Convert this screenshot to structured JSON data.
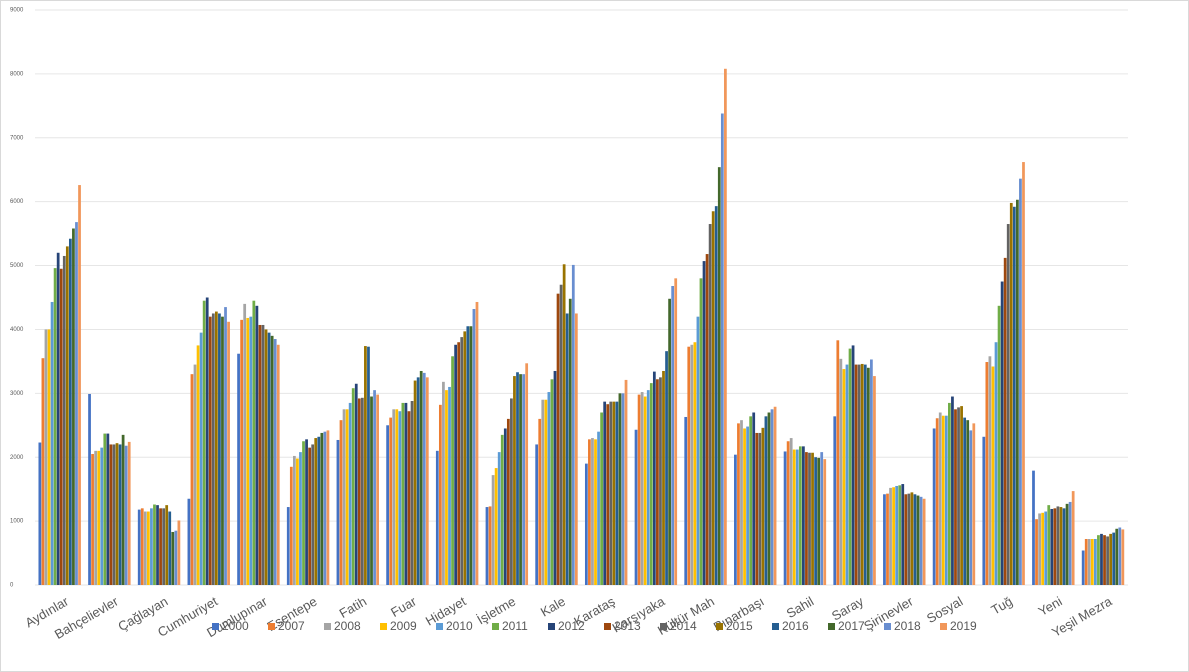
{
  "chart_data": {
    "type": "bar",
    "legend": "bottom",
    "grid": true,
    "ylim": [
      0,
      9000
    ],
    "yticks": [
      0,
      1000,
      2000,
      3000,
      4000,
      5000,
      6000,
      7000,
      8000,
      9000
    ],
    "categories": [
      "Aydınlar",
      "Bahçelievler",
      "Çağlayan",
      "Cumhuriyet",
      "Dumlupınar",
      "Esentepe",
      "Fatih",
      "Fuar",
      "Hidayet",
      "İşletme",
      "Kale",
      "Karataş",
      "Karşıyaka",
      "Kültür Mah",
      "Pınarbaşı",
      "Sahil",
      "Saray",
      "Şirinevler",
      "Sosyal",
      "Tuğ",
      "Yeni",
      "Yeşil Mezra"
    ],
    "series": [
      {
        "name": "2000",
        "color": "#4472c4",
        "values": [
          2230,
          2990,
          1180,
          1350,
          3620,
          1220,
          2270,
          2500,
          2100,
          1220,
          2200,
          1900,
          2430,
          2630,
          2040,
          2090,
          2640,
          1420,
          2450,
          2320,
          1790,
          540
        ]
      },
      {
        "name": "2007",
        "color": "#ed7d31",
        "values": [
          3550,
          2050,
          1200,
          3300,
          4150,
          1850,
          2580,
          2620,
          2820,
          1230,
          2600,
          2280,
          2980,
          3730,
          2530,
          2250,
          3830,
          1430,
          2610,
          3490,
          1030,
          720
        ]
      },
      {
        "name": "2008",
        "color": "#a5a5a5",
        "values": [
          4000,
          2100,
          1150,
          3450,
          4400,
          2020,
          2750,
          2750,
          3180,
          1720,
          2900,
          2300,
          3020,
          3760,
          2580,
          2300,
          3540,
          1520,
          2700,
          3580,
          1120,
          720
        ]
      },
      {
        "name": "2009",
        "color": "#ffc000",
        "values": [
          4000,
          2100,
          1150,
          3750,
          4180,
          1980,
          2750,
          2750,
          3050,
          1830,
          2900,
          2280,
          2950,
          3800,
          2450,
          2120,
          3380,
          1530,
          2650,
          3420,
          1130,
          720
        ]
      },
      {
        "name": "2010",
        "color": "#5b9bd5",
        "values": [
          4430,
          2150,
          1200,
          3950,
          4200,
          2080,
          2850,
          2720,
          3100,
          2080,
          3020,
          2400,
          3050,
          4200,
          2480,
          2120,
          3450,
          1550,
          2650,
          3800,
          1150,
          720
        ]
      },
      {
        "name": "2011",
        "color": "#70ad47",
        "values": [
          4960,
          2370,
          1260,
          4450,
          4450,
          2250,
          3080,
          2850,
          3580,
          2350,
          3220,
          2700,
          3160,
          4800,
          2640,
          2170,
          3700,
          1560,
          2850,
          4370,
          1250,
          780
        ]
      },
      {
        "name": "2012",
        "color": "#264478",
        "values": [
          5200,
          2370,
          1250,
          4500,
          4370,
          2280,
          3150,
          2850,
          3760,
          2450,
          3350,
          2870,
          3340,
          5070,
          2700,
          2170,
          3750,
          1580,
          2950,
          4750,
          1190,
          800
        ]
      },
      {
        "name": "2013",
        "color": "#9e480e",
        "values": [
          4950,
          2200,
          1200,
          4200,
          4070,
          2150,
          2920,
          2720,
          3800,
          2600,
          4560,
          2830,
          3220,
          5180,
          2380,
          2080,
          3450,
          1420,
          2750,
          5120,
          1200,
          780
        ]
      },
      {
        "name": "2014",
        "color": "#636363",
        "values": [
          5150,
          2200,
          1200,
          4250,
          4070,
          2200,
          2930,
          2880,
          3880,
          2920,
          4700,
          2870,
          3250,
          5650,
          2380,
          2070,
          3450,
          1430,
          2780,
          5650,
          1230,
          760
        ]
      },
      {
        "name": "2015",
        "color": "#997300",
        "values": [
          5300,
          2220,
          1250,
          4280,
          4000,
          2300,
          3740,
          3200,
          3970,
          3270,
          5020,
          2870,
          3350,
          5850,
          2460,
          2070,
          3460,
          1450,
          2800,
          5980,
          1220,
          800
        ]
      },
      {
        "name": "2016",
        "color": "#255e91",
        "values": [
          5420,
          2200,
          1150,
          4250,
          3950,
          2320,
          3730,
          3250,
          4050,
          3330,
          4250,
          2870,
          3660,
          5930,
          2640,
          2000,
          3450,
          1420,
          2620,
          5920,
          1200,
          820
        ]
      },
      {
        "name": "2017",
        "color": "#43682b",
        "values": [
          5580,
          2350,
          830,
          4200,
          3900,
          2380,
          2950,
          3350,
          4050,
          3300,
          4480,
          3000,
          4480,
          6540,
          2700,
          1990,
          3400,
          1400,
          2580,
          6030,
          1270,
          880
        ]
      },
      {
        "name": "2018",
        "color": "#698ed0",
        "values": [
          5680,
          2180,
          850,
          4350,
          3850,
          2400,
          3050,
          3320,
          4320,
          3300,
          5010,
          3000,
          4680,
          7380,
          2750,
          2080,
          3530,
          1380,
          2420,
          6360,
          1300,
          900
        ]
      },
      {
        "name": "2019",
        "color": "#f1975a",
        "values": [
          6260,
          2240,
          1010,
          4120,
          3760,
          2420,
          2980,
          3250,
          4430,
          3470,
          4250,
          3210,
          4800,
          8080,
          2790,
          1970,
          3270,
          1350,
          2530,
          6620,
          1470,
          870
        ]
      }
    ]
  }
}
